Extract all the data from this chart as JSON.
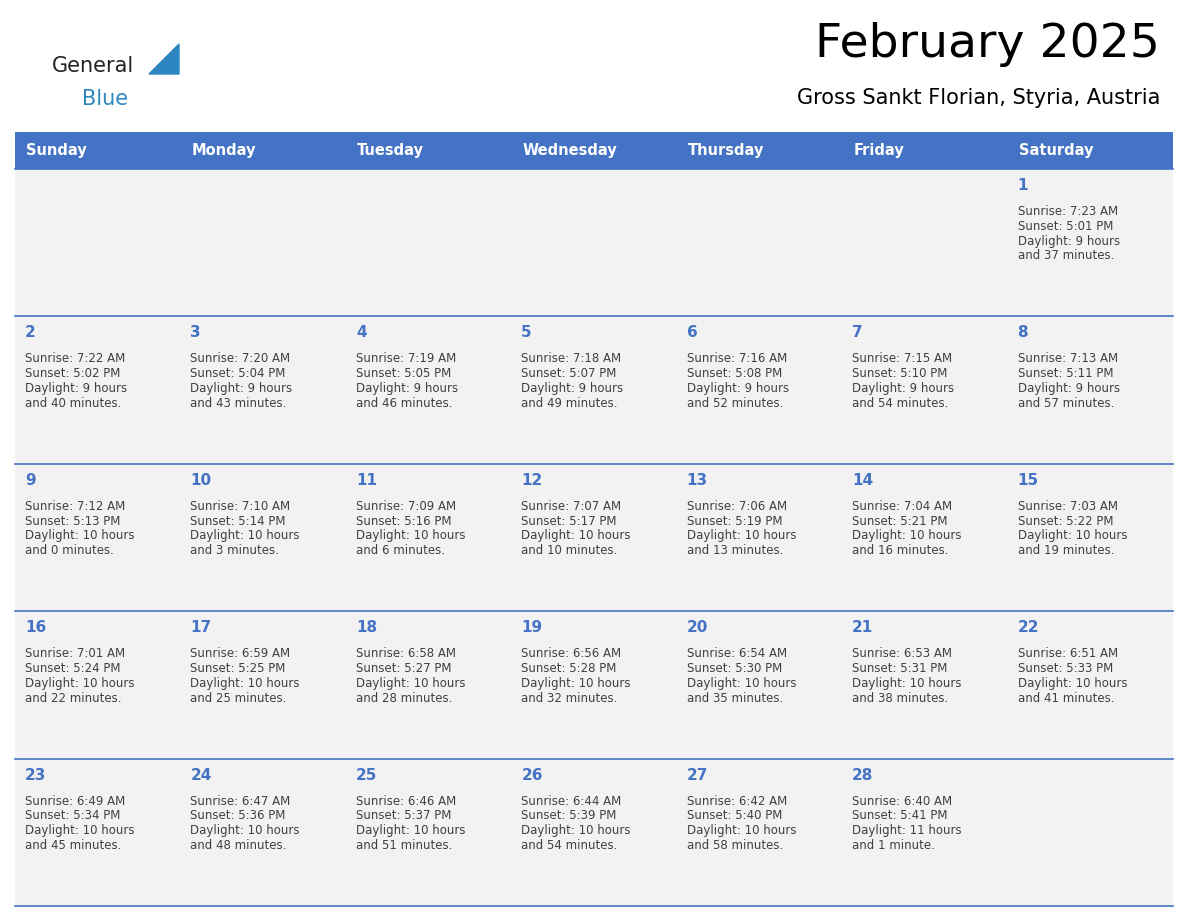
{
  "title": "February 2025",
  "subtitle": "Gross Sankt Florian, Styria, Austria",
  "days_of_week": [
    "Sunday",
    "Monday",
    "Tuesday",
    "Wednesday",
    "Thursday",
    "Friday",
    "Saturday"
  ],
  "header_bg": "#4472C4",
  "header_text": "#FFFFFF",
  "row_bg_odd": "#F2F2F2",
  "row_bg_even": "#FFFFFF",
  "line_color": "#4472C4",
  "day_number_color": "#4472C4",
  "cell_text_color": "#404040",
  "title_color": "#000000",
  "subtitle_color": "#000000",
  "logo_general_color": "#222222",
  "logo_blue_color": "#2E86C1",
  "logo_triangle_color": "#2E86C1",
  "calendar_data": [
    [
      null,
      null,
      null,
      null,
      null,
      null,
      {
        "day": 1,
        "sunrise": "7:23 AM",
        "sunset": "5:01 PM",
        "daylight": "9 hours",
        "daylight2": "and 37 minutes."
      }
    ],
    [
      {
        "day": 2,
        "sunrise": "7:22 AM",
        "sunset": "5:02 PM",
        "daylight": "9 hours",
        "daylight2": "and 40 minutes."
      },
      {
        "day": 3,
        "sunrise": "7:20 AM",
        "sunset": "5:04 PM",
        "daylight": "9 hours",
        "daylight2": "and 43 minutes."
      },
      {
        "day": 4,
        "sunrise": "7:19 AM",
        "sunset": "5:05 PM",
        "daylight": "9 hours",
        "daylight2": "and 46 minutes."
      },
      {
        "day": 5,
        "sunrise": "7:18 AM",
        "sunset": "5:07 PM",
        "daylight": "9 hours",
        "daylight2": "and 49 minutes."
      },
      {
        "day": 6,
        "sunrise": "7:16 AM",
        "sunset": "5:08 PM",
        "daylight": "9 hours",
        "daylight2": "and 52 minutes."
      },
      {
        "day": 7,
        "sunrise": "7:15 AM",
        "sunset": "5:10 PM",
        "daylight": "9 hours",
        "daylight2": "and 54 minutes."
      },
      {
        "day": 8,
        "sunrise": "7:13 AM",
        "sunset": "5:11 PM",
        "daylight": "9 hours",
        "daylight2": "and 57 minutes."
      }
    ],
    [
      {
        "day": 9,
        "sunrise": "7:12 AM",
        "sunset": "5:13 PM",
        "daylight": "10 hours",
        "daylight2": "and 0 minutes."
      },
      {
        "day": 10,
        "sunrise": "7:10 AM",
        "sunset": "5:14 PM",
        "daylight": "10 hours",
        "daylight2": "and 3 minutes."
      },
      {
        "day": 11,
        "sunrise": "7:09 AM",
        "sunset": "5:16 PM",
        "daylight": "10 hours",
        "daylight2": "and 6 minutes."
      },
      {
        "day": 12,
        "sunrise": "7:07 AM",
        "sunset": "5:17 PM",
        "daylight": "10 hours",
        "daylight2": "and 10 minutes."
      },
      {
        "day": 13,
        "sunrise": "7:06 AM",
        "sunset": "5:19 PM",
        "daylight": "10 hours",
        "daylight2": "and 13 minutes."
      },
      {
        "day": 14,
        "sunrise": "7:04 AM",
        "sunset": "5:21 PM",
        "daylight": "10 hours",
        "daylight2": "and 16 minutes."
      },
      {
        "day": 15,
        "sunrise": "7:03 AM",
        "sunset": "5:22 PM",
        "daylight": "10 hours",
        "daylight2": "and 19 minutes."
      }
    ],
    [
      {
        "day": 16,
        "sunrise": "7:01 AM",
        "sunset": "5:24 PM",
        "daylight": "10 hours",
        "daylight2": "and 22 minutes."
      },
      {
        "day": 17,
        "sunrise": "6:59 AM",
        "sunset": "5:25 PM",
        "daylight": "10 hours",
        "daylight2": "and 25 minutes."
      },
      {
        "day": 18,
        "sunrise": "6:58 AM",
        "sunset": "5:27 PM",
        "daylight": "10 hours",
        "daylight2": "and 28 minutes."
      },
      {
        "day": 19,
        "sunrise": "6:56 AM",
        "sunset": "5:28 PM",
        "daylight": "10 hours",
        "daylight2": "and 32 minutes."
      },
      {
        "day": 20,
        "sunrise": "6:54 AM",
        "sunset": "5:30 PM",
        "daylight": "10 hours",
        "daylight2": "and 35 minutes."
      },
      {
        "day": 21,
        "sunrise": "6:53 AM",
        "sunset": "5:31 PM",
        "daylight": "10 hours",
        "daylight2": "and 38 minutes."
      },
      {
        "day": 22,
        "sunrise": "6:51 AM",
        "sunset": "5:33 PM",
        "daylight": "10 hours",
        "daylight2": "and 41 minutes."
      }
    ],
    [
      {
        "day": 23,
        "sunrise": "6:49 AM",
        "sunset": "5:34 PM",
        "daylight": "10 hours",
        "daylight2": "and 45 minutes."
      },
      {
        "day": 24,
        "sunrise": "6:47 AM",
        "sunset": "5:36 PM",
        "daylight": "10 hours",
        "daylight2": "and 48 minutes."
      },
      {
        "day": 25,
        "sunrise": "6:46 AM",
        "sunset": "5:37 PM",
        "daylight": "10 hours",
        "daylight2": "and 51 minutes."
      },
      {
        "day": 26,
        "sunrise": "6:44 AM",
        "sunset": "5:39 PM",
        "daylight": "10 hours",
        "daylight2": "and 54 minutes."
      },
      {
        "day": 27,
        "sunrise": "6:42 AM",
        "sunset": "5:40 PM",
        "daylight": "10 hours",
        "daylight2": "and 58 minutes."
      },
      {
        "day": 28,
        "sunrise": "6:40 AM",
        "sunset": "5:41 PM",
        "daylight": "11 hours",
        "daylight2": "and 1 minute."
      },
      null
    ]
  ]
}
